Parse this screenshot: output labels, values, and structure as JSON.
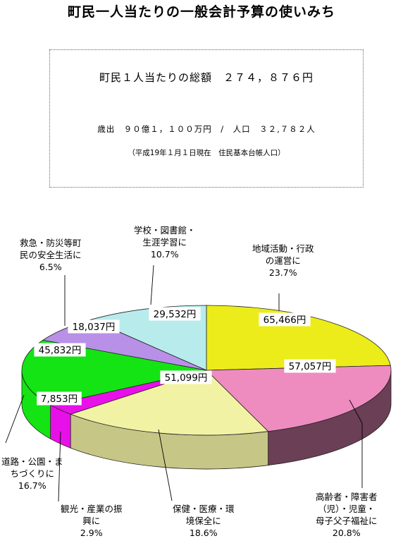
{
  "title": "町民一人当たりの一般会計予算の使いみち",
  "info": {
    "line1": "町民１人当たりの総額　２７４，８７６円",
    "line2": "歳出　９０億１，１００万円　/　人口　３２,７８２人",
    "line3": "（平成19年１月１日現在　住民基本台帳人口）"
  },
  "colors": {
    "community": "#ecec1a",
    "elderly": "#ee8cc0",
    "health": "#f2f2a4",
    "tourism": "#e810e8",
    "roads": "#14e414",
    "safety": "#b890e8",
    "school": "#b8ecec"
  },
  "chart_data": {
    "type": "pie",
    "title": "",
    "unit": "円",
    "slices": [
      {
        "key": "community",
        "name": "地域活動・行政\nの運営に",
        "value": 65466,
        "value_label": "65,466円",
        "percent": "23.7%"
      },
      {
        "key": "elderly",
        "name": "高齢者・障害者\n（児）・児童・\n母子父子福祉に",
        "value": 57057,
        "value_label": "57,057円",
        "percent": "20.8%"
      },
      {
        "key": "health",
        "name": "保健・医療・環\n境保全に",
        "value": 51099,
        "value_label": "51,099円",
        "percent": "18.6%"
      },
      {
        "key": "tourism",
        "name": "観光・産業の振\n興に",
        "value": 7853,
        "value_label": "7,853円",
        "percent": "2.9%"
      },
      {
        "key": "roads",
        "name": "道路・公園・ま\nちづくりに",
        "value": 45832,
        "value_label": "45,832円",
        "percent": "16.7%"
      },
      {
        "key": "safety",
        "name": "救急・防災等町\n民の安全生活に",
        "value": 18037,
        "value_label": "18,037円",
        "percent": "6.5%"
      },
      {
        "key": "school",
        "name": "学校・図書館・\n生涯学習に",
        "value": 29532,
        "value_label": "29,532円",
        "percent": "10.7%"
      }
    ]
  }
}
